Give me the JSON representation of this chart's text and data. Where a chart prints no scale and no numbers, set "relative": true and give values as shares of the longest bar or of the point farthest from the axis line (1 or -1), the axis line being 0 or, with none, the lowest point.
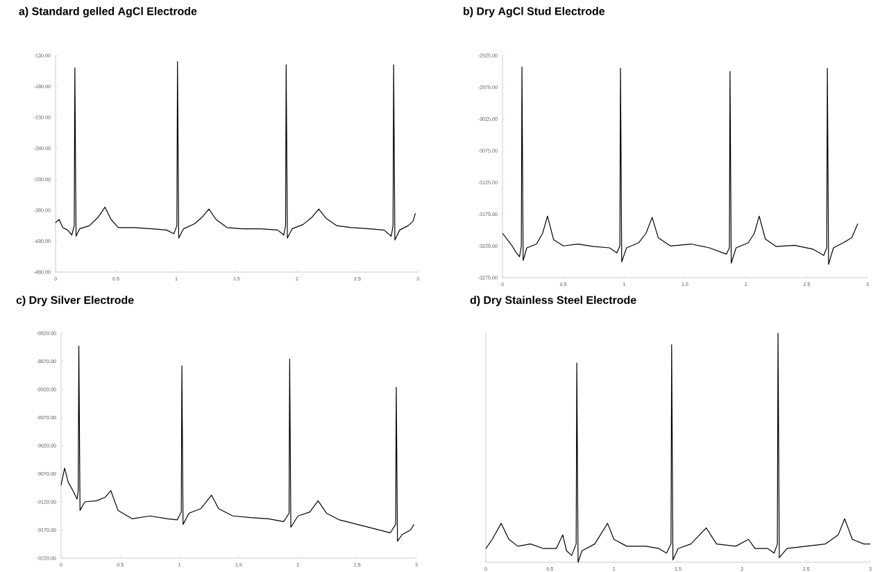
{
  "chart_data": [
    {
      "type": "line",
      "title": "a) Standard gelled AgCl Electrode",
      "color": "#000000",
      "marker": "none",
      "x": [
        0,
        0.03,
        0.06,
        0.1,
        0.135,
        0.155,
        0.16,
        0.17,
        0.2,
        0.28,
        0.35,
        0.41,
        0.46,
        0.52,
        0.65,
        0.8,
        0.92,
        0.98,
        1.005,
        1.01,
        1.02,
        1.06,
        1.15,
        1.21,
        1.27,
        1.33,
        1.42,
        1.55,
        1.7,
        1.84,
        1.89,
        1.905,
        1.91,
        1.92,
        1.96,
        2.05,
        2.12,
        2.18,
        2.24,
        2.33,
        2.45,
        2.6,
        2.72,
        2.78,
        2.795,
        2.8,
        2.81,
        2.85,
        2.92,
        2.96,
        2.98
      ],
      "values": [
        -400,
        -395,
        -408,
        -412,
        -420,
        -405,
        -150,
        -422,
        -410,
        -405,
        -392,
        -375,
        -395,
        -408,
        -408,
        -410,
        -412,
        -418,
        -405,
        -140,
        -425,
        -410,
        -402,
        -392,
        -378,
        -395,
        -408,
        -410,
        -410,
        -412,
        -420,
        -405,
        -145,
        -425,
        -410,
        -403,
        -392,
        -378,
        -393,
        -405,
        -408,
        -410,
        -412,
        -422,
        -405,
        -145,
        -428,
        -412,
        -405,
        -398,
        -385
      ],
      "xlim": [
        0,
        3
      ],
      "xticks": [
        0,
        0.5,
        1,
        1.5,
        2,
        2.5,
        3
      ],
      "ylim": [
        -480,
        -130
      ],
      "yticks": [
        {
          "value": -480,
          "label": "-480.00"
        },
        {
          "value": -430,
          "label": "-430.00"
        },
        {
          "value": -380,
          "label": "-380.00"
        },
        {
          "value": -330,
          "label": "-330.00"
        },
        {
          "value": -280,
          "label": "-280.00"
        },
        {
          "value": -230,
          "label": "-230.00"
        },
        {
          "value": -180,
          "label": "-180.00"
        },
        {
          "value": -130,
          "label": "-130.00"
        }
      ]
    },
    {
      "type": "line",
      "title": "b) Dry AgCl Stud Electrode",
      "color": "#000000",
      "marker": "none",
      "x": [
        0,
        0.04,
        0.08,
        0.11,
        0.14,
        0.155,
        0.16,
        0.17,
        0.2,
        0.28,
        0.33,
        0.37,
        0.42,
        0.5,
        0.62,
        0.75,
        0.88,
        0.94,
        0.965,
        0.97,
        0.98,
        1.02,
        1.12,
        1.18,
        1.23,
        1.28,
        1.38,
        1.55,
        1.7,
        1.84,
        1.865,
        1.87,
        1.88,
        1.92,
        2.02,
        2.07,
        2.11,
        2.16,
        2.25,
        2.4,
        2.55,
        2.64,
        2.665,
        2.67,
        2.68,
        2.72,
        2.8,
        2.87,
        2.92
      ],
      "values": [
        -3205,
        -3215,
        -3225,
        -3235,
        -3242,
        -3225,
        -2943,
        -3248,
        -3228,
        -3222,
        -3205,
        -3178,
        -3215,
        -3225,
        -3222,
        -3226,
        -3228,
        -3236,
        -3225,
        -2945,
        -3250,
        -3228,
        -3220,
        -3205,
        -3180,
        -3212,
        -3225,
        -3222,
        -3228,
        -3238,
        -3228,
        -2950,
        -3252,
        -3228,
        -3220,
        -3205,
        -3178,
        -3214,
        -3226,
        -3224,
        -3230,
        -3240,
        -3228,
        -2945,
        -3254,
        -3228,
        -3220,
        -3212,
        -3190
      ],
      "xlim": [
        0,
        3
      ],
      "xticks": [
        0,
        0.5,
        1,
        1.5,
        2,
        2.5,
        3
      ],
      "ylim": [
        -3275,
        -2925
      ],
      "yticks": [
        {
          "value": -3275,
          "label": "-3275.00"
        },
        {
          "value": -3225,
          "label": "-3225.00"
        },
        {
          "value": -3175,
          "label": "-3175.00"
        },
        {
          "value": -3125,
          "label": "-3125.00"
        },
        {
          "value": -3075,
          "label": "-3075.00"
        },
        {
          "value": -3025,
          "label": "-3025.00"
        },
        {
          "value": -2975,
          "label": "-2975.00"
        },
        {
          "value": -2925,
          "label": "-2925.00"
        }
      ]
    },
    {
      "type": "line",
      "title": "c)   Dry Silver Electrode",
      "color": "#000000",
      "marker": "none",
      "x": [
        0,
        0.03,
        0.06,
        0.1,
        0.135,
        0.145,
        0.15,
        0.16,
        0.2,
        0.3,
        0.37,
        0.42,
        0.48,
        0.6,
        0.75,
        0.9,
        0.98,
        1.015,
        1.02,
        1.03,
        1.08,
        1.18,
        1.27,
        1.33,
        1.45,
        1.6,
        1.75,
        1.88,
        1.925,
        1.93,
        1.94,
        2.0,
        2.1,
        2.17,
        2.24,
        2.35,
        2.5,
        2.65,
        2.78,
        2.825,
        2.83,
        2.84,
        2.88,
        2.95,
        2.98
      ],
      "values": [
        -9090,
        -9060,
        -9085,
        -9100,
        -9115,
        -9100,
        -8843,
        -9135,
        -9120,
        -9118,
        -9112,
        -9100,
        -9135,
        -9150,
        -9145,
        -9150,
        -9152,
        -9138,
        -8878,
        -9160,
        -9140,
        -9132,
        -9108,
        -9132,
        -9145,
        -9148,
        -9150,
        -9155,
        -9140,
        -8866,
        -9165,
        -9145,
        -9138,
        -9118,
        -9140,
        -9152,
        -9160,
        -9168,
        -9175,
        -9160,
        -8916,
        -9190,
        -9178,
        -9170,
        -9160
      ],
      "xlim": [
        0,
        3
      ],
      "xticks": [
        0,
        0.5,
        1,
        1.5,
        2,
        2.5,
        3
      ],
      "ylim": [
        -9220,
        -8820
      ],
      "yticks": [
        {
          "value": -9220,
          "label": "-9220.00"
        },
        {
          "value": -9170,
          "label": "-9170.00"
        },
        {
          "value": -9120,
          "label": "-9120.00"
        },
        {
          "value": -9070,
          "label": "-9070.00"
        },
        {
          "value": -9020,
          "label": "-9020.00"
        },
        {
          "value": -8970,
          "label": "-8970.00"
        },
        {
          "value": -8920,
          "label": "-8920.00"
        },
        {
          "value": -8870,
          "label": "-8870.00"
        },
        {
          "value": -8820,
          "label": "-8820.00"
        }
      ]
    },
    {
      "type": "line",
      "title": "d) Dry Stainless Steel Electrode",
      "color": "#000000",
      "marker": "none",
      "relative": true,
      "x": [
        0,
        0.05,
        0.12,
        0.18,
        0.25,
        0.35,
        0.45,
        0.55,
        0.6,
        0.63,
        0.67,
        0.705,
        0.71,
        0.72,
        0.75,
        0.85,
        0.95,
        1.0,
        1.1,
        1.25,
        1.35,
        1.41,
        1.445,
        1.45,
        1.46,
        1.5,
        1.6,
        1.72,
        1.8,
        1.95,
        2.05,
        2.1,
        2.2,
        2.25,
        2.275,
        2.28,
        2.29,
        2.35,
        2.5,
        2.65,
        2.75,
        2.8,
        2.86,
        2.95,
        3.0
      ],
      "values": [
        0.06,
        0.1,
        0.17,
        0.1,
        0.07,
        0.08,
        0.06,
        0.06,
        0.12,
        0.05,
        0.03,
        0.08,
        0.87,
        0,
        0.05,
        0.08,
        0.17,
        0.1,
        0.07,
        0.07,
        0.06,
        0.04,
        0.08,
        0.95,
        0.01,
        0.06,
        0.08,
        0.15,
        0.08,
        0.07,
        0.1,
        0.06,
        0.06,
        0.04,
        0.08,
        1.0,
        0.02,
        0.06,
        0.07,
        0.08,
        0.12,
        0.19,
        0.1,
        0.08,
        0.08
      ],
      "xlim": [
        0,
        3
      ],
      "xticks": [
        0,
        0.5,
        1,
        1.5,
        2,
        2.5,
        3
      ]
    }
  ]
}
